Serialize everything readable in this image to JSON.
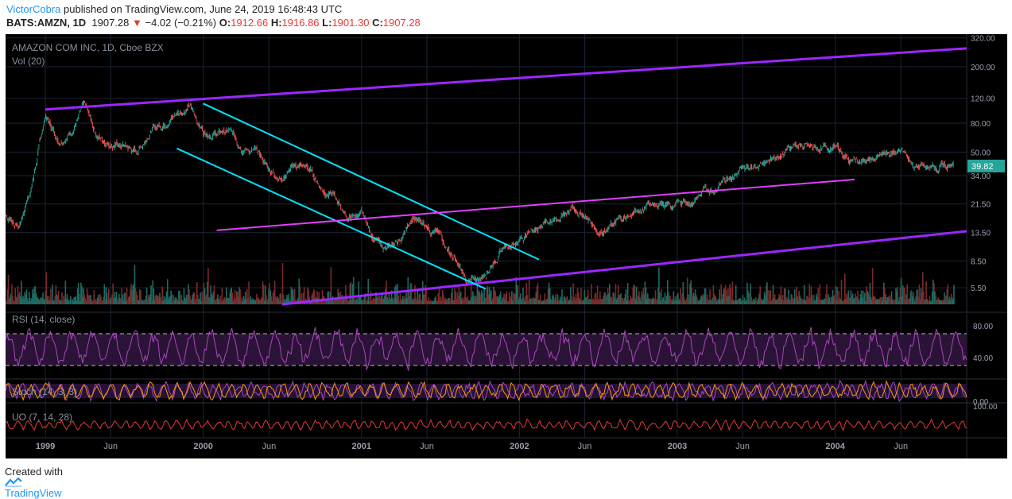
{
  "header": {
    "author": "VictorCobra",
    "published": "published on TradingView.com, June 24, 2019 16:48:43 UTC",
    "symbol": "BATS:AMZN, 1D",
    "last": "1907.28",
    "change_arrow": "▼",
    "change": "−4.02 (−0.21%)",
    "open_label": "O:",
    "open": "1912.66",
    "high_label": "H:",
    "high": "1916.86",
    "low_label": "L:",
    "low": "1901.30",
    "close_label": "C:",
    "close": "1907.28"
  },
  "footer": {
    "created_with": "Created with",
    "brand": "TradingView",
    "logo_icon": "tradingview-logo-icon"
  },
  "chart_data": {
    "type": "line",
    "title": "AMAZON COM INC, 1D, Cboe BZX",
    "volume_label": "Vol (20)",
    "scale": "log",
    "ylim": [
      4.2,
      340
    ],
    "x_range": [
      "1998-10-01",
      "2004-10-31"
    ],
    "x_ticks": [
      {
        "label": "1999",
        "date": "1999-01-01",
        "bold": true
      },
      {
        "label": "Jun",
        "date": "1999-06-01"
      },
      {
        "label": "2000",
        "date": "2000-01-01",
        "bold": true
      },
      {
        "label": "Jun",
        "date": "2000-06-01"
      },
      {
        "label": "2001",
        "date": "2001-01-01",
        "bold": true
      },
      {
        "label": "Jun",
        "date": "2001-06-01"
      },
      {
        "label": "2002",
        "date": "2002-01-01",
        "bold": true
      },
      {
        "label": "Jun",
        "date": "2002-06-01"
      },
      {
        "label": "2003",
        "date": "2003-01-01",
        "bold": true
      },
      {
        "label": "Jun",
        "date": "2003-06-01"
      },
      {
        "label": "2004",
        "date": "2004-01-01",
        "bold": true
      },
      {
        "label": "Jun",
        "date": "2004-06-01"
      }
    ],
    "y_ticks": [
      {
        "label": "320.00",
        "value": 320
      },
      {
        "label": "200.00",
        "value": 200
      },
      {
        "label": "120.00",
        "value": 120
      },
      {
        "label": "80.00",
        "value": 80
      },
      {
        "label": "50.00",
        "value": 50
      },
      {
        "label": "34.00",
        "value": 34
      },
      {
        "label": "21.50",
        "value": 21.5
      },
      {
        "label": "13.50",
        "value": 13.5
      },
      {
        "label": "8.50",
        "value": 8.5
      },
      {
        "label": "5.50",
        "value": 5.5
      }
    ],
    "last_price": {
      "label": "39.82",
      "value": 39.82,
      "color": "#26a69a"
    },
    "series": [
      {
        "points": [
          [
            "1998-10-01",
            18
          ],
          [
            "1998-11-01",
            15
          ],
          [
            "1998-12-01",
            30
          ],
          [
            "1999-01-01",
            90
          ],
          [
            "1999-02-01",
            60
          ],
          [
            "1999-03-01",
            70
          ],
          [
            "1999-04-01",
            105
          ],
          [
            "1999-05-01",
            65
          ],
          [
            "1999-06-01",
            58
          ],
          [
            "1999-07-01",
            55
          ],
          [
            "1999-08-01",
            50
          ],
          [
            "1999-09-01",
            72
          ],
          [
            "1999-10-01",
            80
          ],
          [
            "1999-11-01",
            95
          ],
          [
            "1999-12-01",
            105
          ],
          [
            "2000-01-01",
            70
          ],
          [
            "2000-02-01",
            68
          ],
          [
            "2000-03-01",
            70
          ],
          [
            "2000-04-01",
            55
          ],
          [
            "2000-05-01",
            50
          ],
          [
            "2000-06-01",
            38
          ],
          [
            "2000-07-01",
            33
          ],
          [
            "2000-08-01",
            40
          ],
          [
            "2000-09-01",
            38
          ],
          [
            "2000-10-01",
            28
          ],
          [
            "2000-11-01",
            24
          ],
          [
            "2000-12-01",
            17
          ],
          [
            "2001-01-01",
            18
          ],
          [
            "2001-02-01",
            12
          ],
          [
            "2001-03-01",
            10
          ],
          [
            "2001-04-01",
            12.5
          ],
          [
            "2001-05-01",
            16.5
          ],
          [
            "2001-06-01",
            15.5
          ],
          [
            "2001-07-01",
            13
          ],
          [
            "2001-08-01",
            9
          ],
          [
            "2001-09-01",
            6
          ],
          [
            "2001-10-01",
            6.3
          ],
          [
            "2001-11-01",
            8.5
          ],
          [
            "2001-12-01",
            11
          ],
          [
            "2002-01-01",
            12
          ],
          [
            "2002-02-01",
            14.5
          ],
          [
            "2002-03-01",
            16
          ],
          [
            "2002-04-01",
            17
          ],
          [
            "2002-05-01",
            20
          ],
          [
            "2002-06-01",
            18
          ],
          [
            "2002-07-01",
            14
          ],
          [
            "2002-08-01",
            15
          ],
          [
            "2002-09-01",
            17
          ],
          [
            "2002-10-01",
            19
          ],
          [
            "2002-11-01",
            22
          ],
          [
            "2002-12-01",
            20
          ],
          [
            "2003-01-01",
            21.5
          ],
          [
            "2003-02-01",
            22
          ],
          [
            "2003-03-01",
            26
          ],
          [
            "2003-04-01",
            28
          ],
          [
            "2003-05-01",
            35
          ],
          [
            "2003-06-01",
            37
          ],
          [
            "2003-07-01",
            42
          ],
          [
            "2003-08-01",
            45
          ],
          [
            "2003-09-01",
            50
          ],
          [
            "2003-10-01",
            57
          ],
          [
            "2003-11-01",
            53
          ],
          [
            "2003-12-01",
            52
          ],
          [
            "2004-01-01",
            55
          ],
          [
            "2004-02-01",
            44
          ],
          [
            "2004-03-01",
            43
          ],
          [
            "2004-04-01",
            44
          ],
          [
            "2004-05-01",
            48
          ],
          [
            "2004-06-01",
            52
          ],
          [
            "2004-07-01",
            40
          ],
          [
            "2004-08-01",
            38
          ],
          [
            "2004-09-01",
            40
          ],
          [
            "2004-10-01",
            39.82
          ]
        ]
      }
    ],
    "trendlines": [
      {
        "start": [
          "1999-01-01",
          100
        ],
        "end": [
          "2004-10-31",
          270
        ],
        "color": "#9c27ff",
        "width": 3
      },
      {
        "start": [
          "2000-07-01",
          4.2
        ],
        "end": [
          "2004-10-31",
          13.8
        ],
        "color": "#9c27ff",
        "width": 3
      },
      {
        "start": [
          "2000-01-01",
          110
        ],
        "end": [
          "2002-02-15",
          8.7
        ],
        "color": "#00e5ff",
        "width": 2
      },
      {
        "start": [
          "1999-11-01",
          53
        ],
        "end": [
          "2001-10-15",
          5.4
        ],
        "color": "#00e5ff",
        "width": 2
      },
      {
        "start": [
          "2000-02-01",
          14
        ],
        "end": [
          "2004-02-15",
          32
        ],
        "color": "#e040fb",
        "width": 2
      }
    ],
    "indicators": [
      {
        "name": "RSI (14, close)",
        "ticks": [
          {
            "label": "80.00",
            "value": 80
          },
          {
            "label": "40.00",
            "value": 40
          }
        ],
        "ylim": [
          15,
          95
        ],
        "overbought": 70,
        "oversold": 30,
        "color": "#ab47bc"
      },
      {
        "name": "Stoch (14, 3, 3)",
        "ticks": [
          {
            "label": "0.00",
            "value": 0
          }
        ],
        "ylim": [
          0,
          100
        ],
        "colors": [
          "#ab47bc",
          "#ff9800"
        ]
      },
      {
        "name": "UO (7, 14, 28)",
        "ticks": [
          {
            "label": "100.00",
            "value": 100
          }
        ],
        "ylim": [
          20,
          110
        ],
        "color": "#e53935"
      }
    ],
    "colors": {
      "background": "#000000",
      "grid": "#1c2336",
      "axis_text": "#9aa0ad",
      "up": "#26a69a",
      "down": "#ef5350"
    },
    "grid": true
  }
}
